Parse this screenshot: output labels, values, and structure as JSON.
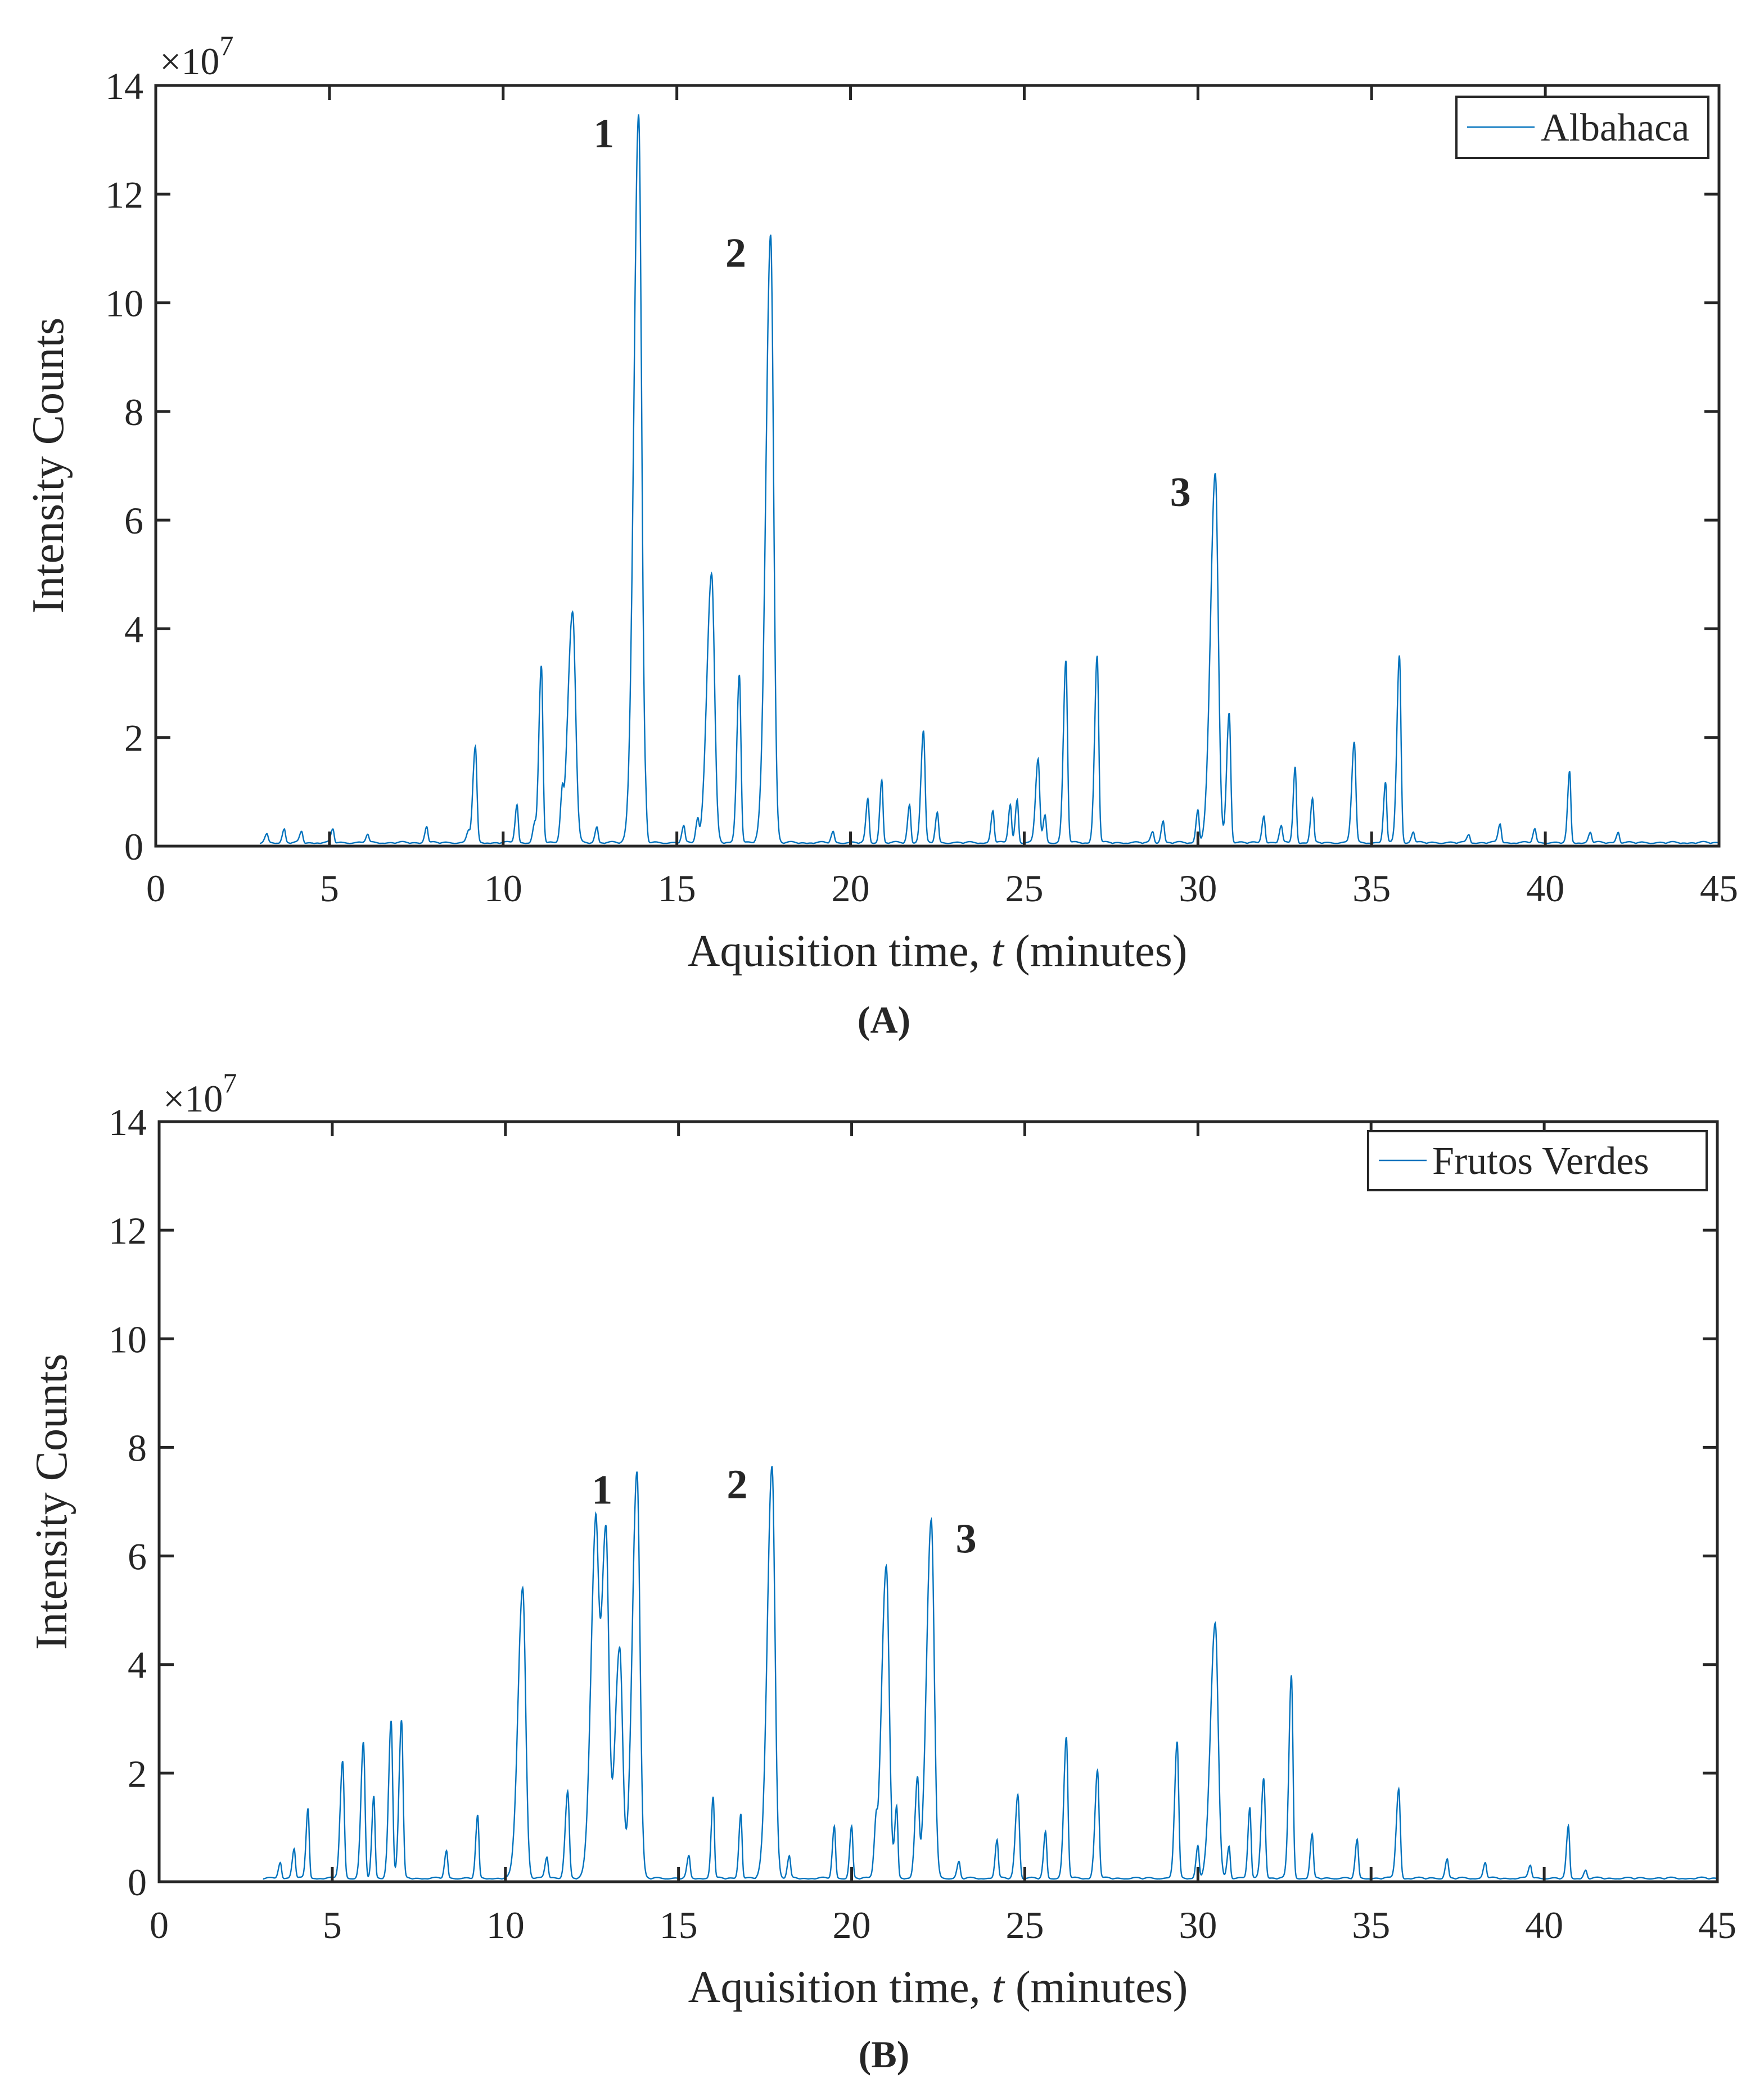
{
  "chart_data": [
    {
      "type": "line",
      "panel_label": "(A)",
      "series_name": "Albahaca",
      "xlabel_pre": "Aquisition time, ",
      "xlabel_var": "t",
      "xlabel_post": " (minutes)",
      "ylabel": "Intensity Counts",
      "y_multiplier": "×10",
      "y_multiplier_exp": "7",
      "xlim": [
        0,
        45
      ],
      "ylim": [
        0,
        14
      ],
      "xticks": [
        0,
        5,
        10,
        15,
        20,
        25,
        30,
        35,
        40,
        45
      ],
      "yticks": [
        0,
        2,
        4,
        6,
        8,
        10,
        12,
        14
      ],
      "legend_location": "top-right",
      "line_color": "#0072BD",
      "baseline_start": 3.0,
      "baseline_end": 45.0,
      "peaks": [
        {
          "t": 3.2,
          "h": 0.15
        },
        {
          "t": 3.7,
          "h": 0.25
        },
        {
          "t": 4.2,
          "h": 0.2
        },
        {
          "t": 5.1,
          "h": 0.25
        },
        {
          "t": 6.1,
          "h": 0.15
        },
        {
          "t": 7.8,
          "h": 0.3
        },
        {
          "t": 9.0,
          "h": 0.2
        },
        {
          "t": 9.2,
          "h": 1.75
        },
        {
          "t": 10.4,
          "h": 0.7
        },
        {
          "t": 10.9,
          "h": 0.3
        },
        {
          "t": 11.1,
          "h": 3.25
        },
        {
          "t": 11.7,
          "h": 0.7
        },
        {
          "t": 12.0,
          "h": 4.25
        },
        {
          "t": 12.7,
          "h": 0.3
        },
        {
          "t": 13.9,
          "h": 13.4
        },
        {
          "t": 14.1,
          "h": 0.4
        },
        {
          "t": 15.2,
          "h": 0.3
        },
        {
          "t": 15.6,
          "h": 0.4
        },
        {
          "t": 16.0,
          "h": 4.95
        },
        {
          "t": 16.8,
          "h": 3.1
        },
        {
          "t": 17.7,
          "h": 11.2
        },
        {
          "t": 19.5,
          "h": 0.2
        },
        {
          "t": 20.5,
          "h": 0.8
        },
        {
          "t": 20.9,
          "h": 1.15
        },
        {
          "t": 21.7,
          "h": 0.7
        },
        {
          "t": 22.1,
          "h": 2.05
        },
        {
          "t": 22.5,
          "h": 0.55
        },
        {
          "t": 24.1,
          "h": 0.6
        },
        {
          "t": 24.6,
          "h": 0.7
        },
        {
          "t": 24.8,
          "h": 0.8
        },
        {
          "t": 25.4,
          "h": 1.55
        },
        {
          "t": 25.6,
          "h": 0.5
        },
        {
          "t": 26.2,
          "h": 3.35
        },
        {
          "t": 27.1,
          "h": 3.45
        },
        {
          "t": 28.7,
          "h": 0.2
        },
        {
          "t": 29.0,
          "h": 0.4
        },
        {
          "t": 30.0,
          "h": 0.6
        },
        {
          "t": 30.5,
          "h": 6.8
        },
        {
          "t": 30.9,
          "h": 2.4
        },
        {
          "t": 31.9,
          "h": 0.5
        },
        {
          "t": 32.4,
          "h": 0.3
        },
        {
          "t": 32.8,
          "h": 1.4
        },
        {
          "t": 33.3,
          "h": 0.8
        },
        {
          "t": 34.5,
          "h": 1.85
        },
        {
          "t": 35.4,
          "h": 1.1
        },
        {
          "t": 35.8,
          "h": 3.45
        },
        {
          "t": 36.2,
          "h": 0.2
        },
        {
          "t": 37.8,
          "h": 0.15
        },
        {
          "t": 38.7,
          "h": 0.35
        },
        {
          "t": 39.7,
          "h": 0.25
        },
        {
          "t": 40.7,
          "h": 1.3
        },
        {
          "t": 41.3,
          "h": 0.2
        },
        {
          "t": 42.1,
          "h": 0.2
        }
      ],
      "annotations": [
        {
          "text": "1",
          "t": 13.9,
          "y": 13.4,
          "pos": "left"
        },
        {
          "text": "2",
          "t": 17.7,
          "y": 11.2,
          "pos": "left"
        },
        {
          "text": "3",
          "t": 30.5,
          "y": 6.8,
          "pos": "left"
        }
      ]
    },
    {
      "type": "line",
      "panel_label": "(B)",
      "series_name": "Frutos Verdes",
      "xlabel_pre": "Aquisition time, ",
      "xlabel_var": "t",
      "xlabel_post": " (minutes)",
      "ylabel": "Intensity Counts",
      "y_multiplier": "×10",
      "y_multiplier_exp": "7",
      "xlim": [
        0,
        45
      ],
      "ylim": [
        0,
        14
      ],
      "xticks": [
        0,
        5,
        10,
        15,
        20,
        25,
        30,
        35,
        40,
        45
      ],
      "yticks": [
        0,
        2,
        4,
        6,
        8,
        10,
        12,
        14
      ],
      "legend_location": "top-right",
      "line_color": "#0072BD",
      "baseline_start": 3.0,
      "baseline_end": 45.0,
      "peaks": [
        {
          "t": 3.5,
          "h": 0.3
        },
        {
          "t": 3.9,
          "h": 0.55
        },
        {
          "t": 4.3,
          "h": 1.3
        },
        {
          "t": 5.3,
          "h": 2.15
        },
        {
          "t": 5.9,
          "h": 2.5
        },
        {
          "t": 6.2,
          "h": 1.5
        },
        {
          "t": 6.7,
          "h": 2.9
        },
        {
          "t": 7.0,
          "h": 2.9
        },
        {
          "t": 8.3,
          "h": 0.5
        },
        {
          "t": 9.2,
          "h": 1.15
        },
        {
          "t": 10.5,
          "h": 5.35
        },
        {
          "t": 11.2,
          "h": 0.4
        },
        {
          "t": 11.8,
          "h": 1.6
        },
        {
          "t": 12.6,
          "h": 6.1
        },
        {
          "t": 12.9,
          "h": 6.45
        },
        {
          "t": 13.3,
          "h": 4.25
        },
        {
          "t": 13.8,
          "h": 7.5
        },
        {
          "t": 15.3,
          "h": 0.4
        },
        {
          "t": 16.0,
          "h": 1.5
        },
        {
          "t": 16.8,
          "h": 1.2
        },
        {
          "t": 17.7,
          "h": 7.6
        },
        {
          "t": 18.2,
          "h": 0.4
        },
        {
          "t": 19.5,
          "h": 0.95
        },
        {
          "t": 20.0,
          "h": 0.95
        },
        {
          "t": 20.7,
          "h": 0.7
        },
        {
          "t": 21.0,
          "h": 5.75
        },
        {
          "t": 21.3,
          "h": 1.3
        },
        {
          "t": 21.9,
          "h": 1.8
        },
        {
          "t": 22.3,
          "h": 6.6
        },
        {
          "t": 23.1,
          "h": 0.3
        },
        {
          "t": 24.2,
          "h": 0.7
        },
        {
          "t": 24.8,
          "h": 1.55
        },
        {
          "t": 25.6,
          "h": 0.85
        },
        {
          "t": 26.2,
          "h": 2.6
        },
        {
          "t": 27.1,
          "h": 2.0
        },
        {
          "t": 29.4,
          "h": 2.5
        },
        {
          "t": 30.0,
          "h": 0.6
        },
        {
          "t": 30.5,
          "h": 4.7
        },
        {
          "t": 30.9,
          "h": 0.6
        },
        {
          "t": 31.5,
          "h": 1.3
        },
        {
          "t": 31.9,
          "h": 1.85
        },
        {
          "t": 32.7,
          "h": 3.75
        },
        {
          "t": 33.3,
          "h": 0.8
        },
        {
          "t": 34.6,
          "h": 0.7
        },
        {
          "t": 35.8,
          "h": 1.65
        },
        {
          "t": 37.2,
          "h": 0.35
        },
        {
          "t": 38.3,
          "h": 0.3
        },
        {
          "t": 39.6,
          "h": 0.25
        },
        {
          "t": 40.7,
          "h": 0.95
        },
        {
          "t": 41.2,
          "h": 0.15
        }
      ],
      "annotations": [
        {
          "text": "1",
          "t": 13.8,
          "y": 7.5,
          "pos": "left"
        },
        {
          "text": "2",
          "t": 17.7,
          "y": 7.6,
          "pos": "left"
        },
        {
          "text": "3",
          "t": 22.3,
          "y": 6.6,
          "pos": "right"
        }
      ]
    }
  ]
}
